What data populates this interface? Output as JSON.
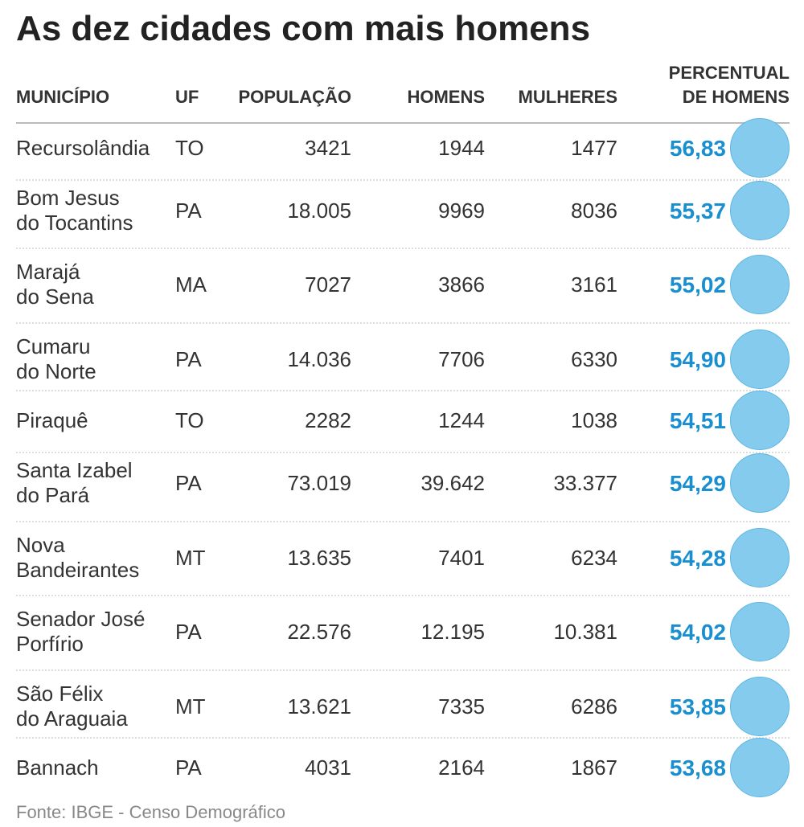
{
  "header": {
    "title": "As dez cidades com mais homens"
  },
  "table": {
    "columns": [
      "MUNICÍPIO",
      "UF",
      "POPULAÇÃO",
      "HOMENS",
      "MULHERES",
      [
        "PERCENTUAL",
        "DE HOMENS"
      ]
    ],
    "rows": [
      [
        [
          "Recursolândia"
        ],
        "TO",
        "3421",
        "1944",
        "1477",
        "56,83"
      ],
      [
        [
          "Bom Jesus",
          "do Tocantins"
        ],
        "PA",
        "18.005",
        "9969",
        "8036",
        "55,37"
      ],
      [
        [
          "Marajá",
          "do Sena"
        ],
        "MA",
        "7027",
        "3866",
        "3161",
        "55,02"
      ],
      [
        [
          "Cumaru",
          "do Norte"
        ],
        "PA",
        "14.036",
        "7706",
        "6330",
        "54,90"
      ],
      [
        [
          "Piraquê"
        ],
        "TO",
        "2282",
        "1244",
        "1038",
        "54,51"
      ],
      [
        [
          "Santa Izabel",
          "do Pará"
        ],
        "PA",
        "73.019",
        "39.642",
        "33.377",
        "54,29"
      ],
      [
        [
          "Nova",
          "Bandeirantes"
        ],
        "MT",
        "13.635",
        "7401",
        "6234",
        "54,28"
      ],
      [
        [
          "Senador José",
          "Porfírio"
        ],
        "PA",
        "22.576",
        "12.195",
        "10.381",
        "54,02"
      ],
      [
        [
          "São Félix",
          "do Araguaia"
        ],
        "MT",
        "13.621",
        "7335",
        "6286",
        "53,85"
      ],
      [
        [
          "Bannach"
        ],
        "PA",
        "4031",
        "2164",
        "1867",
        "53,68"
      ]
    ]
  },
  "footer": {
    "source": "Fonte: IBGE - Censo Demográfico"
  }
}
